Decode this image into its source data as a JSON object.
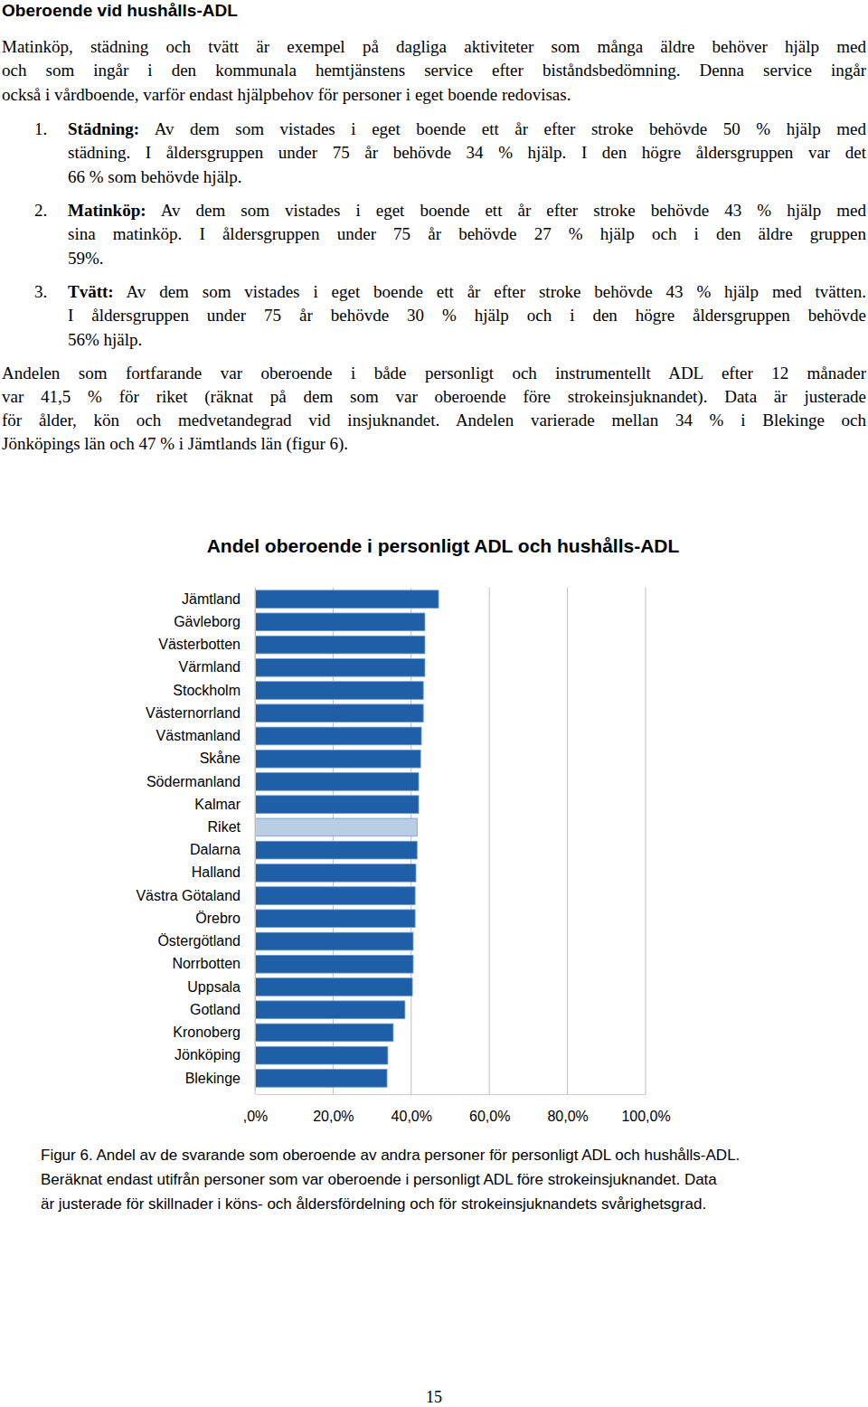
{
  "header": {
    "title": "Oberoende vid hushålls-ADL"
  },
  "intro": {
    "lines": [
      "Matinköp, städning och tvätt är exempel på dagliga aktiviteter som många äldre behöver hjälp med",
      "och som ingår i den kommunala hemtjänstens service efter biståndsbedömning. Denna service ingår",
      "också i vårdboende, varför endast hjälpbehov för personer i eget boende redovisas."
    ]
  },
  "list": [
    {
      "number": "1.",
      "label": "Städning:",
      "lines": [
        "Av dem som vistades i eget boende ett år efter stroke behövde 50 % hjälp med",
        "städning. I åldersgruppen under 75 år behövde 34 % hjälp. I den högre åldersgruppen var det",
        "66 % som behövde hjälp."
      ]
    },
    {
      "number": "2.",
      "label": "Matinköp:",
      "lines": [
        "Av dem som vistades i eget boende ett år efter stroke behövde 43 % hjälp med",
        "sina matinköp. I åldersgruppen under 75 år behövde 27 % hjälp och i den äldre gruppen",
        "59%."
      ]
    },
    {
      "number": "3.",
      "label": "Tvätt:",
      "lines": [
        "Av dem som vistades i eget boende ett år efter stroke behövde 43 % hjälp med tvätten.",
        "I åldersgruppen under 75 år behövde 30 % hjälp och i den högre åldersgruppen behövde",
        "56% hjälp."
      ]
    }
  ],
  "summary": {
    "lines": [
      "Andelen som fortfarande var oberoende i både personligt och instrumentellt ADL efter 12 månader",
      "var 41,5 % för riket (räknat på dem som var oberoende före strokeinsjuknandet). Data är justerade",
      "för ålder, kön och medvetandegrad vid insjuknandet. Andelen varierade mellan 34 % i Blekinge och",
      "Jönköpings län och 47 % i Jämtlands län (figur 6)."
    ]
  },
  "chart_data": {
    "type": "bar",
    "orientation": "horizontal",
    "title": "Andel oberoende i personligt ADL och hushålls-ADL",
    "categories": [
      "Jämtland",
      "Gävleborg",
      "Västerbotten",
      "Värmland",
      "Stockholm",
      "Västernorrland",
      "Västmanland",
      "Skåne",
      "Södermanland",
      "Kalmar",
      "Riket",
      "Dalarna",
      "Halland",
      "Västra Götaland",
      "Örebro",
      "Östergötland",
      "Norrbotten",
      "Uppsala",
      "Gotland",
      "Kronoberg",
      "Jönköping",
      "Blekinge"
    ],
    "values": [
      47,
      43.5,
      43.5,
      43.5,
      43.1,
      43.1,
      42.6,
      42.4,
      41.9,
      41.9,
      41.5,
      41.5,
      41.2,
      41.0,
      41.0,
      40.5,
      40.5,
      40.3,
      38.4,
      35.4,
      34.0,
      33.8
    ],
    "colors": [
      "#1f5fa8",
      "#1f5fa8",
      "#1f5fa8",
      "#1f5fa8",
      "#1f5fa8",
      "#1f5fa8",
      "#1f5fa8",
      "#1f5fa8",
      "#1f5fa8",
      "#1f5fa8",
      "#b9cde5",
      "#1f5fa8",
      "#1f5fa8",
      "#1f5fa8",
      "#1f5fa8",
      "#1f5fa8",
      "#1f5fa8",
      "#1f5fa8",
      "#1f5fa8",
      "#1f5fa8",
      "#1f5fa8",
      "#1f5fa8"
    ],
    "xlim": [
      0,
      100
    ],
    "xticks": [
      {
        "value": 0,
        "label": ",0%"
      },
      {
        "value": 20,
        "label": "20,0%"
      },
      {
        "value": 40,
        "label": "40,0%"
      },
      {
        "value": 60,
        "label": "60,0%"
      },
      {
        "value": 80,
        "label": "80,0%"
      },
      {
        "value": 100,
        "label": "100,0%"
      }
    ],
    "grid": true
  },
  "caption": {
    "lines": [
      "Figur 6. Andel av de svarande som oberoende av andra personer för personligt ADL och hushålls-ADL.",
      "Beräknat endast utifrån personer som var oberoende i personligt ADL före strokeinsjuknandet. Data",
      "är justerade för skillnader i köns- och åldersfördelning och för strokeinsjuknandets svårighetsgrad."
    ]
  },
  "footer": {
    "page_number": 15
  }
}
